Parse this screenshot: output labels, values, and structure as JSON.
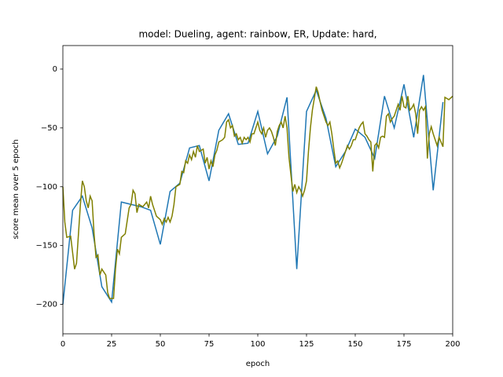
{
  "chart_data": {
    "type": "line",
    "title": "model: Dueling, agent: rainbow, ER, Update: hard,",
    "x_label": "epoch",
    "y_label": "score mean over 5 epoch",
    "xlim": [
      0,
      200
    ],
    "ylim": [
      -225,
      20
    ],
    "xticks": [
      0,
      25,
      50,
      75,
      100,
      125,
      150,
      175,
      200
    ],
    "yticks": [
      {
        "value": -200,
        "label": "−200"
      },
      {
        "value": -150,
        "label": "−150"
      },
      {
        "value": -100,
        "label": "−100"
      },
      {
        "value": -50,
        "label": "−50"
      },
      0
    ],
    "series": [
      {
        "color": "#1f77b4",
        "x": [
          0,
          5,
          10,
          15,
          20,
          25,
          30,
          35,
          40,
          45,
          50,
          55,
          60,
          65,
          70,
          75,
          80,
          85,
          90,
          95,
          100,
          105,
          110,
          115,
          120,
          125,
          130,
          135,
          140,
          145,
          150,
          155,
          160,
          165,
          170,
          175,
          180,
          185,
          190,
          195
        ],
        "values": [
          -200,
          -120,
          -108,
          -135,
          -185,
          -198,
          -113,
          -115,
          -117,
          -120,
          -149,
          -104,
          -97,
          -67,
          -65,
          -95,
          -52,
          -38,
          -64,
          -63,
          -36,
          -72,
          -57,
          -24,
          -170,
          -36,
          -18,
          -42,
          -83,
          -70,
          -51,
          -58,
          -76,
          -23,
          -50,
          -13,
          -58,
          -5,
          -103,
          -28
        ]
      },
      {
        "color": "#808000",
        "x": [
          0,
          1,
          2,
          4,
          6,
          7,
          8,
          9,
          10,
          11,
          12,
          13,
          14,
          15,
          16,
          17,
          18,
          19,
          20,
          22,
          23,
          24,
          26,
          27,
          28,
          29,
          30,
          32,
          34,
          35,
          36,
          37,
          38,
          39,
          41,
          43,
          44,
          45,
          46,
          48,
          50,
          51,
          52,
          53,
          54,
          55,
          56,
          57,
          58,
          60,
          61,
          62,
          63,
          64,
          65,
          66,
          67,
          68,
          69,
          70,
          72,
          73,
          74,
          75,
          76,
          77,
          78,
          79,
          80,
          82,
          83,
          84,
          85,
          86,
          87,
          88,
          89,
          90,
          91,
          92,
          93,
          94,
          95,
          96,
          97,
          98,
          99,
          100,
          101,
          102,
          103,
          104,
          105,
          106,
          107,
          108,
          109,
          110,
          111,
          112,
          113,
          114,
          115,
          116,
          117,
          118,
          119,
          120,
          121,
          122,
          123,
          124,
          125,
          126,
          127,
          128,
          129,
          130,
          131,
          132,
          133,
          134,
          135,
          136,
          137,
          138,
          139,
          140,
          141,
          142,
          143,
          144,
          146,
          147,
          148,
          149,
          150,
          151,
          152,
          153,
          154,
          155,
          156,
          157,
          158,
          159,
          160,
          161,
          162,
          163,
          164,
          165,
          166,
          167,
          168,
          169,
          170,
          171,
          172,
          173,
          174,
          175,
          176,
          177,
          178,
          179,
          180,
          181,
          182,
          183,
          184,
          185,
          186,
          187,
          188,
          189,
          190,
          191,
          192,
          193,
          194,
          195,
          196,
          197,
          198,
          200
        ],
        "values": [
          -100,
          -130,
          -143,
          -142,
          -170,
          -165,
          -140,
          -115,
          -95,
          -100,
          -112,
          -118,
          -108,
          -112,
          -140,
          -160,
          -158,
          -175,
          -170,
          -175,
          -190,
          -195,
          -195,
          -170,
          -153,
          -157,
          -143,
          -140,
          -118,
          -115,
          -103,
          -106,
          -122,
          -115,
          -117,
          -113,
          -118,
          -108,
          -115,
          -125,
          -128,
          -132,
          -127,
          -130,
          -126,
          -130,
          -125,
          -115,
          -100,
          -98,
          -87,
          -88,
          -78,
          -80,
          -73,
          -77,
          -70,
          -75,
          -65,
          -70,
          -68,
          -80,
          -75,
          -85,
          -78,
          -83,
          -73,
          -69,
          -62,
          -60,
          -58,
          -45,
          -43,
          -50,
          -48,
          -57,
          -55,
          -60,
          -58,
          -63,
          -58,
          -60,
          -58,
          -62,
          -55,
          -55,
          -50,
          -45,
          -52,
          -55,
          -50,
          -58,
          -52,
          -50,
          -53,
          -58,
          -65,
          -53,
          -48,
          -45,
          -50,
          -40,
          -50,
          -75,
          -90,
          -104,
          -98,
          -105,
          -100,
          -103,
          -108,
          -103,
          -95,
          -70,
          -50,
          -35,
          -25,
          -15,
          -20,
          -28,
          -35,
          -40,
          -45,
          -48,
          -45,
          -55,
          -68,
          -80,
          -78,
          -84,
          -80,
          -75,
          -65,
          -68,
          -65,
          -60,
          -60,
          -55,
          -50,
          -47,
          -45,
          -55,
          -57,
          -60,
          -62,
          -87,
          -65,
          -63,
          -67,
          -58,
          -57,
          -58,
          -40,
          -38,
          -45,
          -42,
          -40,
          -35,
          -30,
          -35,
          -23,
          -32,
          -33,
          -23,
          -35,
          -33,
          -30,
          -38,
          -55,
          -35,
          -32,
          -35,
          -32,
          -76,
          -55,
          -49,
          -55,
          -60,
          -65,
          -58,
          -62,
          -66,
          -24,
          -25,
          -26,
          -23
        ]
      }
    ]
  }
}
